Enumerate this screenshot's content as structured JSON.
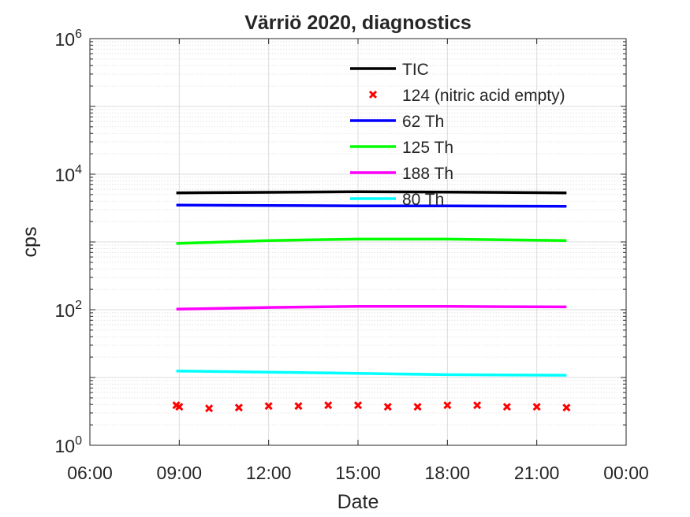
{
  "chart_data": {
    "type": "line",
    "title": "Värriö 2020, diagnostics",
    "xlabel": "Date",
    "ylabel": "cps",
    "x_ticks": [
      "06:00",
      "09:00",
      "12:00",
      "15:00",
      "18:00",
      "21:00",
      "00:00"
    ],
    "x_range_hours": [
      6,
      24
    ],
    "y_scale": "log",
    "y_ticks": [
      {
        "base": "10",
        "exp": "0"
      },
      {
        "base": "10",
        "exp": "2"
      },
      {
        "base": "10",
        "exp": "4"
      },
      {
        "base": "10",
        "exp": "6"
      }
    ],
    "ylim": [
      1,
      1000000
    ],
    "grid": true,
    "legend_position": "top-right",
    "series": [
      {
        "name": "TIC",
        "style": "line",
        "color": "#000000",
        "x": [
          8.9,
          12,
          15,
          18,
          22
        ],
        "y": [
          5300,
          5400,
          5500,
          5450,
          5300
        ]
      },
      {
        "name": "124 (nitric acid empty)",
        "style": "marker-x",
        "color": "#ff0000",
        "x": [
          8.9,
          9,
          10,
          11,
          12,
          13,
          14,
          15,
          16,
          17,
          18,
          19,
          20,
          21,
          22
        ],
        "y": [
          3.9,
          3.7,
          3.5,
          3.6,
          3.8,
          3.8,
          3.9,
          3.9,
          3.7,
          3.7,
          3.9,
          3.9,
          3.7,
          3.7,
          3.6
        ]
      },
      {
        "name": "62 Th",
        "style": "line",
        "color": "#0000ff",
        "x": [
          8.9,
          12,
          15,
          18,
          22
        ],
        "y": [
          3500,
          3450,
          3400,
          3400,
          3350
        ]
      },
      {
        "name": "125 Th",
        "style": "line",
        "color": "#00ff00",
        "x": [
          8.9,
          12,
          15,
          18,
          22
        ],
        "y": [
          950,
          1050,
          1100,
          1100,
          1050
        ]
      },
      {
        "name": "188 Th",
        "style": "line",
        "color": "#ff00ff",
        "x": [
          8.9,
          12,
          15,
          18,
          22
        ],
        "y": [
          102,
          108,
          112,
          112,
          110
        ]
      },
      {
        "name": "80 Th",
        "style": "line",
        "color": "#00ffff",
        "x": [
          8.9,
          12,
          15,
          18,
          22
        ],
        "y": [
          12.5,
          12,
          11.5,
          11,
          10.8
        ]
      }
    ]
  }
}
